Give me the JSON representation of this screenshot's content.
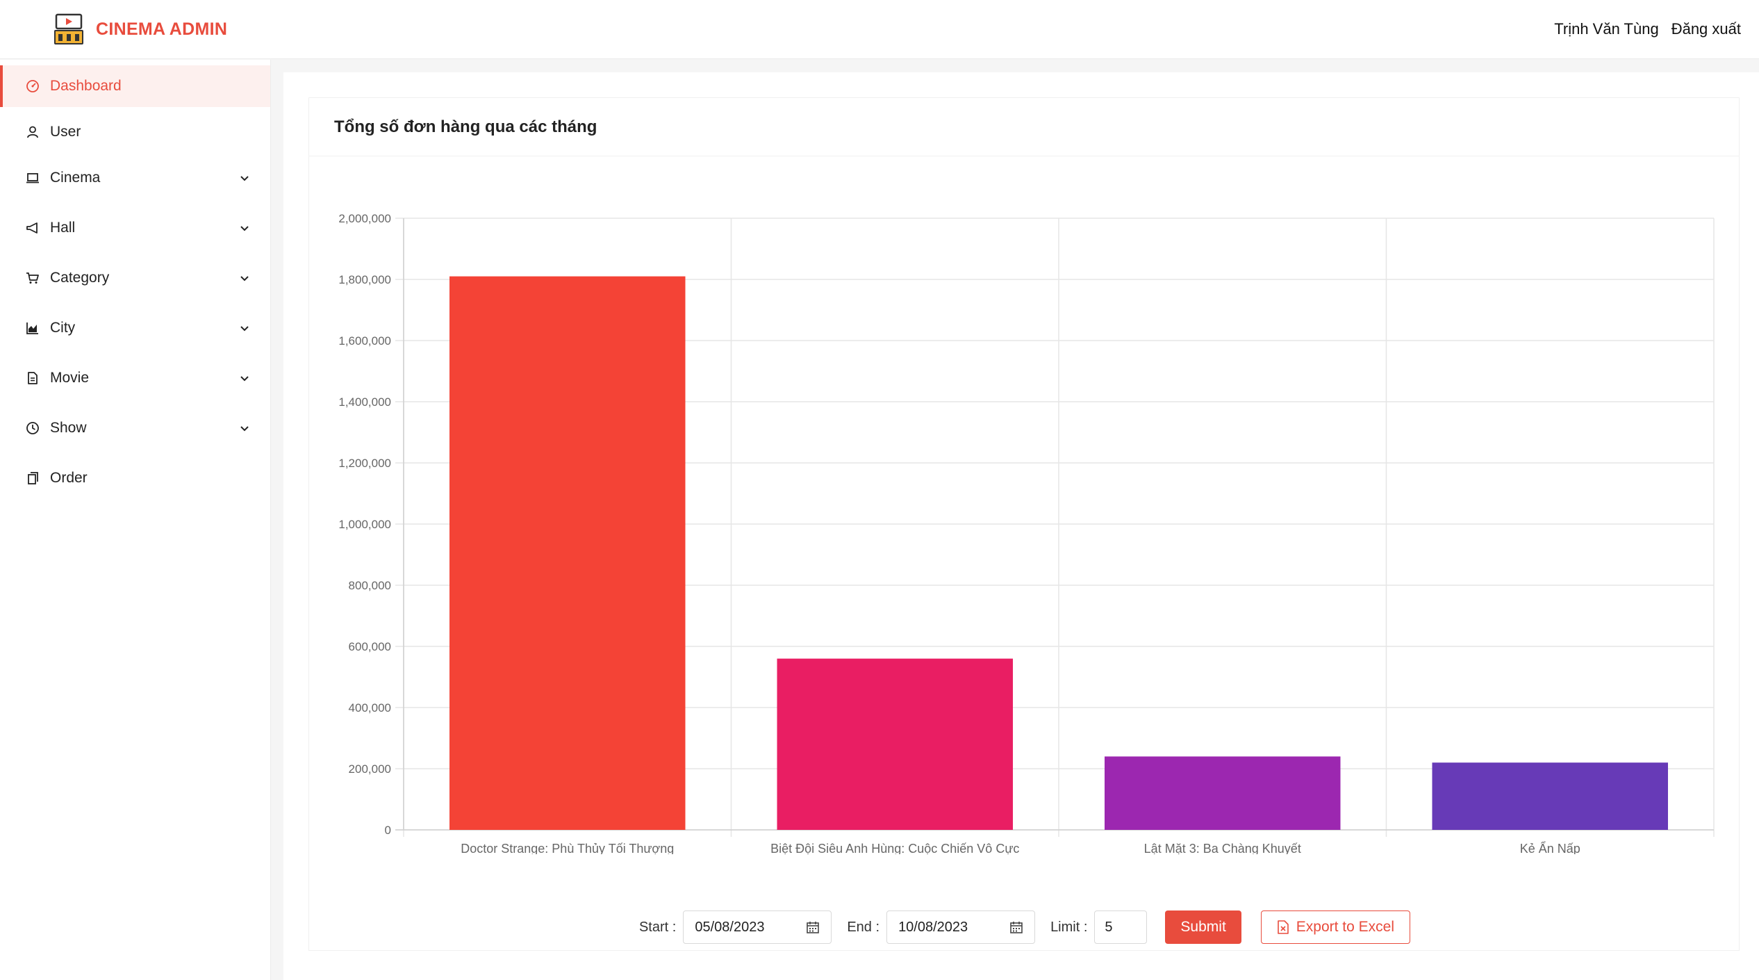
{
  "header": {
    "brand": "CINEMA ADMIN",
    "user_name": "Trịnh Văn Tùng",
    "logout": "Đăng xuất"
  },
  "sidebar": {
    "items": [
      {
        "label": "Dashboard",
        "icon": "dashboard-icon",
        "active": true,
        "expandable": false
      },
      {
        "label": "User",
        "icon": "user-icon",
        "active": false,
        "expandable": false
      },
      {
        "label": "Cinema",
        "icon": "laptop-icon",
        "active": false,
        "expandable": true
      },
      {
        "label": "Hall",
        "icon": "megaphone-icon",
        "active": false,
        "expandable": true
      },
      {
        "label": "Category",
        "icon": "cart-icon",
        "active": false,
        "expandable": true
      },
      {
        "label": "City",
        "icon": "area-chart-icon",
        "active": false,
        "expandable": true
      },
      {
        "label": "Movie",
        "icon": "file-icon",
        "active": false,
        "expandable": true
      },
      {
        "label": "Show",
        "icon": "clock-icon",
        "active": false,
        "expandable": true
      },
      {
        "label": "Order",
        "icon": "copy-icon",
        "active": false,
        "expandable": false
      }
    ]
  },
  "card": {
    "title": "Tổng số đơn hàng qua các tháng"
  },
  "chart_data": {
    "type": "bar",
    "categories": [
      "Doctor Strange: Phù Thủy Tối Thượng",
      "Biệt Đội Siêu Anh Hùng: Cuộc Chiến Vô Cực",
      "Lật Mặt 3: Ba Chàng Khuyết",
      "Kẻ Ẩn Nấp"
    ],
    "values": [
      1810000,
      560000,
      240000,
      220000
    ],
    "colors": [
      "#f44336",
      "#e91e63",
      "#9c27b0",
      "#673ab7"
    ],
    "ylim": [
      0,
      2000000
    ],
    "yticks": [
      0,
      200000,
      400000,
      600000,
      800000,
      1000000,
      1200000,
      1400000,
      1600000,
      1800000,
      2000000
    ],
    "ytick_labels": [
      "0",
      "200,000",
      "400,000",
      "600,000",
      "800,000",
      "1,000,000",
      "1,200,000",
      "1,400,000",
      "1,600,000",
      "1,800,000",
      "2,000,000"
    ],
    "grid": true,
    "legend": false,
    "title": "",
    "xlabel": "",
    "ylabel": ""
  },
  "controls": {
    "start_label": "Start",
    "start_value": "05/08/2023",
    "end_label": "End",
    "end_value": "10/08/2023",
    "limit_label": "Limit",
    "limit_value": "5",
    "submit_label": "Submit",
    "export_label": "Export to Excel"
  },
  "colors": {
    "accent": "#e84c3d"
  }
}
